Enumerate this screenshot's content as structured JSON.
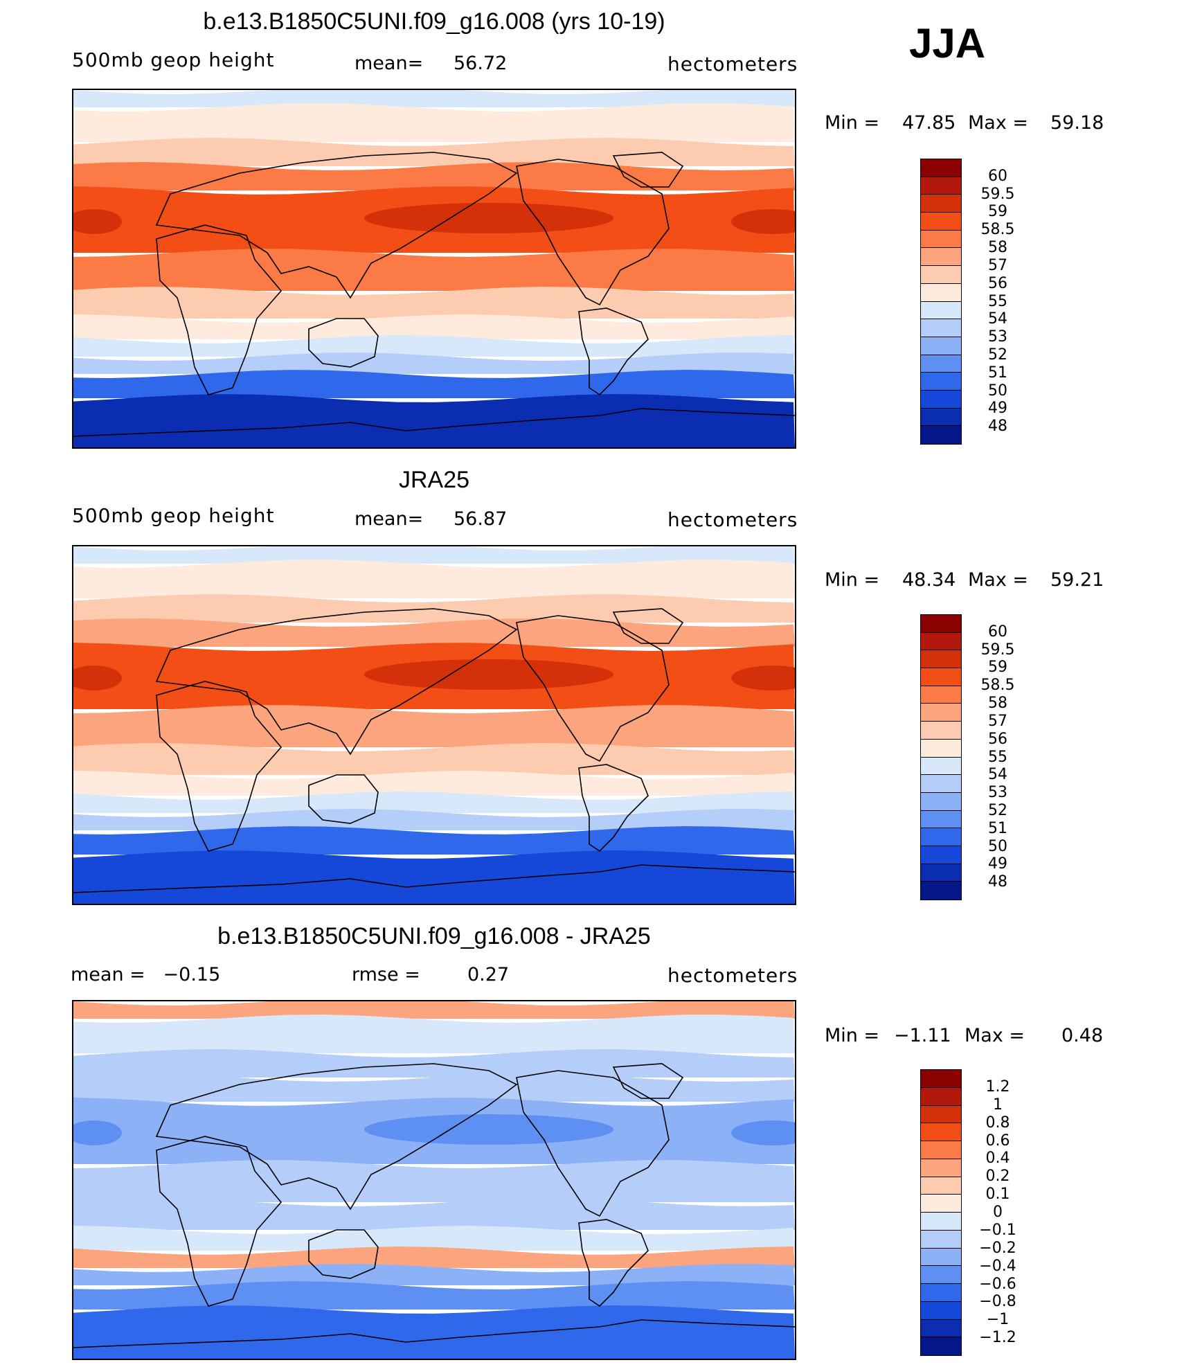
{
  "season": "JJA",
  "units": "hectometers",
  "panels": [
    {
      "title": "b.e13.B1850C5UNI.f09_g16.008 (yrs 10-19)",
      "left_label": "500mb geop height",
      "mean_label": "mean=",
      "mean_value": "56.72",
      "units": "hectometers",
      "min_label": "Min =",
      "min_value": "47.85",
      "max_label": "Max =",
      "max_value": "59.18",
      "levels": [
        "60",
        "59.5",
        "59",
        "58.5",
        "58",
        "57",
        "56",
        "55",
        "54",
        "53",
        "52",
        "51",
        "50",
        "49",
        "48"
      ],
      "colors": [
        "#8B0000",
        "#B2180C",
        "#D4310B",
        "#F24E15",
        "#FB7A45",
        "#FCA47E",
        "#FDCCB0",
        "#FEEBDD",
        "#D7E8FB",
        "#B4CDF9",
        "#8DB1F7",
        "#5E90F3",
        "#3068EC",
        "#1547D9",
        "#0B2DB2",
        "#04178A"
      ],
      "map_colors": {
        "polar_n": "#D7E8FB",
        "mid_n": "#FEEBDD",
        "warm": "#FB7A45",
        "hot": "#F24E15",
        "core": "#D4310B",
        "south1": "#FDCCB0",
        "south2": "#B4CDF9",
        "south3": "#3068EC",
        "ant": "#0B2DB2"
      }
    },
    {
      "title": "JRA25",
      "left_label": "500mb geop height",
      "mean_label": "mean=",
      "mean_value": "56.87",
      "units": "hectometers",
      "min_label": "Min =",
      "min_value": "48.34",
      "max_label": "Max =",
      "max_value": "59.21",
      "levels": [
        "60",
        "59.5",
        "59",
        "58.5",
        "58",
        "57",
        "56",
        "55",
        "54",
        "53",
        "52",
        "51",
        "50",
        "49",
        "48"
      ],
      "colors": [
        "#8B0000",
        "#B2180C",
        "#D4310B",
        "#F24E15",
        "#FB7A45",
        "#FCA47E",
        "#FDCCB0",
        "#FEEBDD",
        "#D7E8FB",
        "#B4CDF9",
        "#8DB1F7",
        "#5E90F3",
        "#3068EC",
        "#1547D9",
        "#0B2DB2",
        "#04178A"
      ],
      "map_colors": {
        "polar_n": "#D7E8FB",
        "mid_n": "#FEEBDD",
        "warm": "#FCA47E",
        "hot": "#F24E15",
        "core": "#D4310B",
        "south1": "#FDCCB0",
        "south2": "#B4CDF9",
        "south3": "#3068EC",
        "ant": "#1547D9"
      }
    },
    {
      "title": "b.e13.B1850C5UNI.f09_g16.008 - JRA25",
      "left_label": "mean =   −0.15",
      "mean_label": "rmse =",
      "mean_value": "0.27",
      "units": "hectometers",
      "min_label": "Min =",
      "min_value": "−1.11",
      "max_label": "Max =",
      "max_value": "0.48",
      "levels": [
        "1.2",
        "1",
        "0.8",
        "0.6",
        "0.4",
        "0.2",
        "0.1",
        "0",
        "−0.1",
        "−0.2",
        "−0.4",
        "−0.6",
        "−0.8",
        "−1",
        "−1.2"
      ],
      "colors": [
        "#8B0000",
        "#B2180C",
        "#D4310B",
        "#F24E15",
        "#FB7A45",
        "#FCA47E",
        "#FDCCB0",
        "#FEEBDD",
        "#D7E8FB",
        "#B4CDF9",
        "#8DB1F7",
        "#5E90F3",
        "#3068EC",
        "#1547D9",
        "#0B2DB2",
        "#04178A"
      ],
      "map_colors": {
        "polar_n": "#FCA47E",
        "mid_n": "#D7E8FB",
        "warm": "#B4CDF9",
        "hot": "#8DB1F7",
        "core": "#5E90F3",
        "south1": "#B4CDF9",
        "south2": "#8DB1F7",
        "south3": "#5E90F3",
        "ant": "#3068EC"
      }
    }
  ]
}
